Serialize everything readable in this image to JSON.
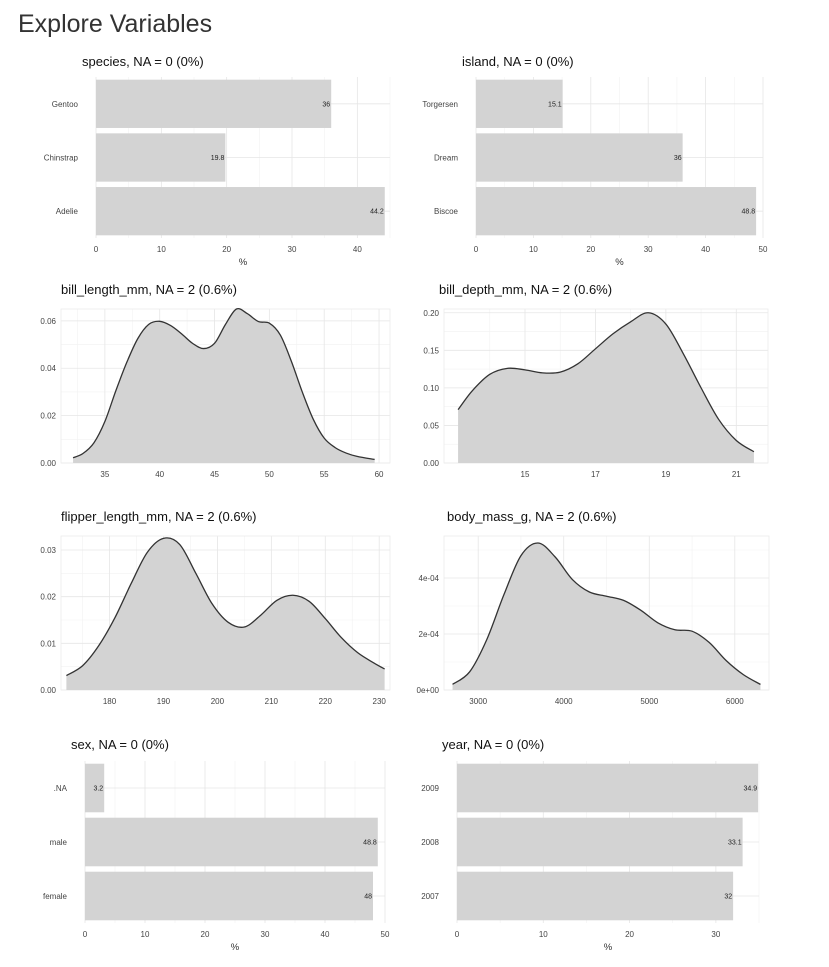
{
  "title": "Explore Variables",
  "chart_data": [
    {
      "id": "species",
      "type": "bar",
      "orientation": "horizontal",
      "title": "species, NA = 0 (0%)",
      "xlabel": "%",
      "categories": [
        "Gentoo",
        "Chinstrap",
        "Adelie"
      ],
      "values": [
        36,
        19.8,
        44.2
      ],
      "value_labels": [
        "36",
        "19.8",
        "44.2"
      ],
      "xlim": [
        0,
        45
      ],
      "xticks": [
        0,
        10,
        20,
        30,
        40
      ],
      "grid": true
    },
    {
      "id": "island",
      "type": "bar",
      "orientation": "horizontal",
      "title": "island, NA = 0 (0%)",
      "xlabel": "%",
      "categories": [
        "Torgersen",
        "Dream",
        "Biscoe"
      ],
      "values": [
        15.1,
        36,
        48.8
      ],
      "value_labels": [
        "15.1",
        "36",
        "48.8"
      ],
      "xlim": [
        0,
        50
      ],
      "xticks": [
        0,
        10,
        20,
        30,
        40,
        50
      ],
      "grid": true
    },
    {
      "id": "bill_length_mm",
      "type": "area",
      "title": "bill_length_mm, NA = 2 (0.6%)",
      "x": [
        32.1,
        33,
        34,
        35,
        36,
        37,
        38,
        39,
        40,
        41,
        42,
        43,
        44,
        45,
        46,
        47,
        48,
        49,
        50,
        51,
        52,
        53,
        54,
        55,
        56,
        57,
        58,
        59.6
      ],
      "y": [
        0.0022,
        0.004,
        0.0085,
        0.0175,
        0.0305,
        0.0425,
        0.0525,
        0.0585,
        0.0598,
        0.058,
        0.0545,
        0.0505,
        0.0483,
        0.0505,
        0.0585,
        0.065,
        0.063,
        0.0597,
        0.059,
        0.054,
        0.043,
        0.03,
        0.0185,
        0.0105,
        0.0065,
        0.0042,
        0.0028,
        0.0015
      ],
      "xlim": [
        31,
        61
      ],
      "ylim": [
        0,
        0.065
      ],
      "xticks": [
        35,
        40,
        45,
        50,
        55,
        60
      ],
      "yticks": [
        0,
        0.02,
        0.04,
        0.06
      ],
      "ytick_labels": [
        "0.00",
        "0.02",
        "0.04",
        "0.06"
      ],
      "grid": true
    },
    {
      "id": "bill_depth_mm",
      "type": "area",
      "title": "bill_depth_mm, NA = 2 (0.6%)",
      "x": [
        13.1,
        13.5,
        14,
        14.5,
        15,
        15.5,
        16,
        16.5,
        17,
        17.5,
        18,
        18.5,
        19,
        19.5,
        20,
        20.5,
        21,
        21.5
      ],
      "y": [
        0.071,
        0.096,
        0.118,
        0.126,
        0.124,
        0.12,
        0.121,
        0.132,
        0.152,
        0.172,
        0.188,
        0.2,
        0.185,
        0.145,
        0.1,
        0.058,
        0.03,
        0.015
      ],
      "xlim": [
        12.7,
        21.9
      ],
      "ylim": [
        0,
        0.205
      ],
      "xticks": [
        15,
        17,
        19,
        21
      ],
      "yticks": [
        0,
        0.05,
        0.1,
        0.15,
        0.2
      ],
      "ytick_labels": [
        "0.00",
        "0.05",
        "0.10",
        "0.15",
        "0.20"
      ],
      "grid": true
    },
    {
      "id": "flipper_length_mm",
      "type": "area",
      "title": "flipper_length_mm, NA = 2 (0.6%)",
      "x": [
        172,
        175,
        178,
        181,
        184,
        187,
        190,
        193,
        196,
        199,
        202,
        205,
        208,
        211,
        214,
        217,
        220,
        223,
        226,
        229,
        231
      ],
      "y": [
        0.0031,
        0.0052,
        0.0095,
        0.0155,
        0.0228,
        0.0295,
        0.0325,
        0.0312,
        0.025,
        0.0185,
        0.0145,
        0.0135,
        0.016,
        0.0192,
        0.0203,
        0.019,
        0.0153,
        0.0112,
        0.008,
        0.0058,
        0.0045
      ],
      "xlim": [
        171,
        232
      ],
      "ylim": [
        0,
        0.033
      ],
      "xticks": [
        180,
        190,
        200,
        210,
        220,
        230
      ],
      "yticks": [
        0,
        0.01,
        0.02,
        0.03
      ],
      "ytick_labels": [
        "0.00",
        "0.01",
        "0.02",
        "0.03"
      ],
      "grid": true
    },
    {
      "id": "body_mass_g",
      "type": "area",
      "title": "body_mass_g, NA = 2 (0.6%)",
      "x": [
        2700,
        2900,
        3100,
        3300,
        3500,
        3700,
        3900,
        4100,
        4300,
        4500,
        4700,
        4900,
        5100,
        5300,
        5500,
        5700,
        5900,
        6100,
        6300
      ],
      "y": [
        2e-05,
        6.5e-05,
        0.00018,
        0.00034,
        0.00048,
        0.000525,
        0.000475,
        0.000395,
        0.00035,
        0.000335,
        0.00032,
        0.000285,
        0.00024,
        0.000215,
        0.00021,
        0.00017,
        0.000105,
        5.5e-05,
        2e-05
      ],
      "xlim": [
        2600,
        6400
      ],
      "ylim": [
        0,
        0.00055
      ],
      "xticks": [
        3000,
        4000,
        5000,
        6000
      ],
      "yticks": [
        0,
        0.0002,
        0.0004
      ],
      "ytick_labels": [
        "0e+00",
        "2e-04",
        "4e-04"
      ],
      "grid": true
    },
    {
      "id": "sex",
      "type": "bar",
      "orientation": "horizontal",
      "title": "sex, NA = 0 (0%)",
      "xlabel": "%",
      "categories": [
        ".NA",
        "male",
        "female"
      ],
      "values": [
        3.2,
        48.8,
        48
      ],
      "value_labels": [
        "3.2",
        "48.8",
        "48"
      ],
      "xlim": [
        0,
        50
      ],
      "xticks": [
        0,
        10,
        20,
        30,
        40,
        50
      ],
      "grid": true
    },
    {
      "id": "year",
      "type": "bar",
      "orientation": "horizontal",
      "title": "year, NA = 0 (0%)",
      "xlabel": "%",
      "categories": [
        "2009",
        "2008",
        "2007"
      ],
      "values": [
        34.9,
        33.1,
        32
      ],
      "value_labels": [
        "34.9",
        "33.1",
        "32"
      ],
      "xlim": [
        0,
        35
      ],
      "xticks": [
        0,
        10,
        20,
        30
      ],
      "grid": true
    }
  ]
}
